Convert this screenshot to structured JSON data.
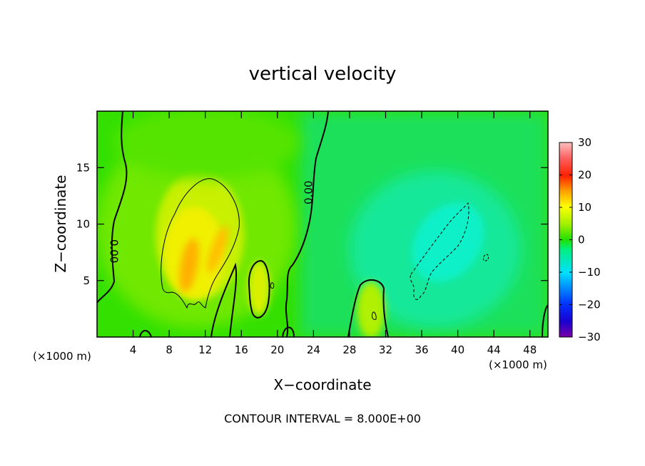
{
  "chart_data": {
    "type": "heatmap",
    "title": "vertical velocity",
    "xlabel": "X−coordinate",
    "ylabel": "Z−coordinate",
    "x_unit_left": "(×1000 m)",
    "x_unit_right": "(×1000 m)",
    "footer": "CONTOUR INTERVAL = 8.000E+00",
    "xlim": [
      0,
      50
    ],
    "ylim": [
      0,
      20
    ],
    "x_ticks": [
      4,
      8,
      12,
      16,
      20,
      24,
      28,
      32,
      36,
      40,
      44,
      48
    ],
    "y_ticks": [
      5,
      10,
      15
    ],
    "colorbar": {
      "min": -30,
      "max": 30,
      "ticks": [
        "30",
        "20",
        "10",
        "0",
        "−10",
        "−20",
        "−30"
      ],
      "tick_values": [
        30,
        20,
        10,
        0,
        -10,
        -20,
        -30
      ]
    },
    "contour_labels": [
      {
        "text": "0.00",
        "x": 23.5,
        "y": 12.8,
        "rotate": -90
      },
      {
        "text": "0.00",
        "x": 1.8,
        "y": 7.6,
        "rotate": 90
      }
    ],
    "field_features": [
      {
        "kind": "updraft",
        "x": 11.5,
        "z": 7.5,
        "peak": 16
      },
      {
        "kind": "updraft",
        "x": 18.5,
        "z": 4.5,
        "peak": 9
      },
      {
        "kind": "updraft",
        "x": 30.5,
        "z": 2.2,
        "peak": 9
      },
      {
        "kind": "downdraft",
        "x": 39,
        "z": 8,
        "peak": -9
      }
    ]
  }
}
